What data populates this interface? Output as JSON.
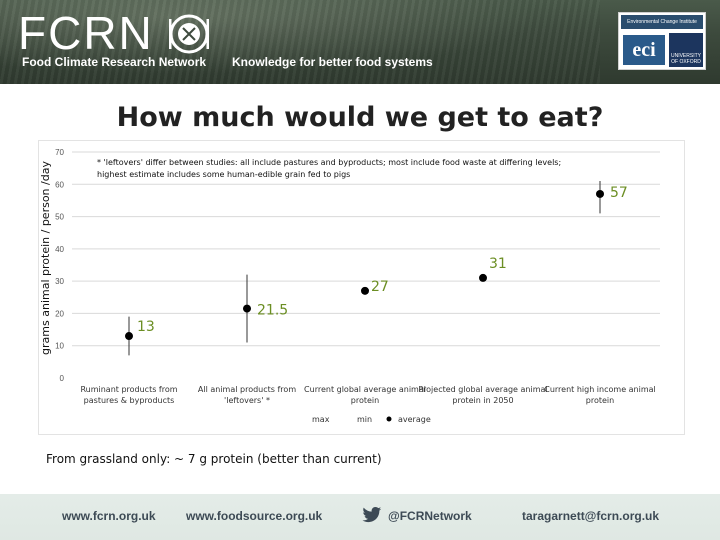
{
  "header": {
    "logo_text": "FCRN",
    "subtitle": "Food Climate Research Network",
    "tagline": "Knowledge for better food systems",
    "partner_head": "Environmental Change Institute",
    "partner_mark": "eci",
    "partner_university": "UNIVERSITY OF OXFORD"
  },
  "page": {
    "title": "How much would we get to eat?",
    "footnote": "From grassland only: ~ 7 g protein (better than current)"
  },
  "chart_data": {
    "type": "scatter",
    "title": "",
    "ylabel": "grams animal protein / person /day",
    "xlabel": "",
    "ylim": [
      0,
      70
    ],
    "yticks": [
      0,
      10,
      20,
      30,
      40,
      50,
      60,
      70
    ],
    "grid": true,
    "annotation": "* 'leftovers' differ between studies: all include pastures and byproducts; most include food waste at differing levels; highest estimate includes some  human-edible grain fed to pigs",
    "categories": [
      "Ruminant products from pastures & byproducts",
      "All animal products from 'leftovers' *",
      "Current global average animal protein",
      "Projected global average animal protein in 2050",
      "Current high income animal protein"
    ],
    "average": [
      13,
      21.5,
      27,
      31,
      57
    ],
    "min": [
      7,
      11,
      null,
      null,
      51
    ],
    "max": [
      19,
      32,
      null,
      null,
      61
    ],
    "data_labels": [
      "13",
      "21.5",
      "27",
      "31",
      "57"
    ],
    "legend": {
      "position": "bottom",
      "entries": [
        "max",
        "min",
        "average"
      ]
    },
    "colors": {
      "point": "#000000",
      "label": "#6b8e23",
      "grid": "#d9d9d9"
    }
  },
  "footer": {
    "site1": "www.fcrn.org.uk",
    "site2": "www.foodsource.org.uk",
    "twitter": "@FCRNetwork",
    "email": "taragarnett@fcrn.org.uk"
  }
}
